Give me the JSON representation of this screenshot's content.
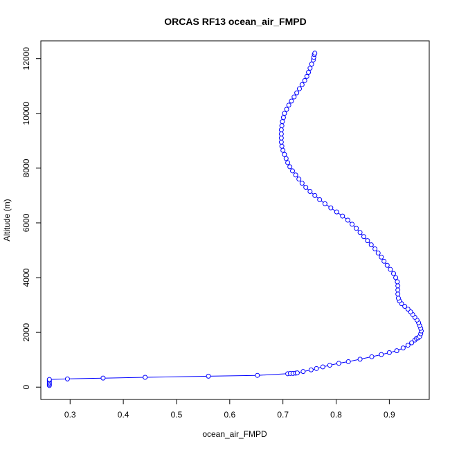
{
  "chart_data": {
    "type": "scatter",
    "title": "ORCAS RF13 ocean_air_FMPD",
    "xlabel": "ocean_air_FMPD",
    "ylabel": "Altitude (m)",
    "xlim": [
      0.245,
      0.975
    ],
    "ylim": [
      -450,
      12650
    ],
    "xticks": [
      0.3,
      0.4,
      0.5,
      0.6,
      0.7,
      0.8,
      0.9
    ],
    "yticks": [
      0,
      2000,
      4000,
      6000,
      8000,
      10000,
      12000
    ],
    "x_tick_labels": [
      "0.3",
      "0.4",
      "0.5",
      "0.6",
      "0.7",
      "0.8",
      "0.9"
    ],
    "y_tick_labels": [
      "0",
      "2000",
      "4000",
      "6000",
      "8000",
      "10000",
      "12000"
    ],
    "grid": false,
    "series": [
      {
        "color": "#0000ff",
        "marker": "open-circle",
        "line": true,
        "points": [
          [
            0.261,
            60
          ],
          [
            0.261,
            100
          ],
          [
            0.261,
            150
          ],
          [
            0.261,
            200
          ],
          [
            0.261,
            250
          ],
          [
            0.261,
            280
          ],
          [
            0.295,
            300
          ],
          [
            0.362,
            330
          ],
          [
            0.441,
            360
          ],
          [
            0.56,
            400
          ],
          [
            0.652,
            430
          ],
          [
            0.709,
            490
          ],
          [
            0.714,
            500
          ],
          [
            0.719,
            500
          ],
          [
            0.724,
            510
          ],
          [
            0.727,
            520
          ],
          [
            0.738,
            570
          ],
          [
            0.753,
            630
          ],
          [
            0.763,
            680
          ],
          [
            0.775,
            740
          ],
          [
            0.788,
            800
          ],
          [
            0.805,
            870
          ],
          [
            0.823,
            930
          ],
          [
            0.845,
            1020
          ],
          [
            0.867,
            1110
          ],
          [
            0.885,
            1190
          ],
          [
            0.9,
            1260
          ],
          [
            0.914,
            1330
          ],
          [
            0.926,
            1430
          ],
          [
            0.935,
            1530
          ],
          [
            0.942,
            1620
          ],
          [
            0.948,
            1720
          ],
          [
            0.951,
            1780
          ],
          [
            0.954,
            1800
          ],
          [
            0.957,
            1850
          ],
          [
            0.959,
            1950
          ],
          [
            0.96,
            2050
          ],
          [
            0.959,
            2150
          ],
          [
            0.957,
            2250
          ],
          [
            0.955,
            2350
          ],
          [
            0.952,
            2450
          ],
          [
            0.948,
            2550
          ],
          [
            0.944,
            2650
          ],
          [
            0.94,
            2750
          ],
          [
            0.935,
            2850
          ],
          [
            0.929,
            2950
          ],
          [
            0.923,
            3050
          ],
          [
            0.919,
            3150
          ],
          [
            0.917,
            3250
          ],
          [
            0.916,
            3400
          ],
          [
            0.916,
            3550
          ],
          [
            0.916,
            3700
          ],
          [
            0.915,
            3850
          ],
          [
            0.912,
            4000
          ],
          [
            0.908,
            4150
          ],
          [
            0.902,
            4300
          ],
          [
            0.896,
            4450
          ],
          [
            0.89,
            4600
          ],
          [
            0.885,
            4750
          ],
          [
            0.879,
            4900
          ],
          [
            0.873,
            5050
          ],
          [
            0.866,
            5200
          ],
          [
            0.859,
            5350
          ],
          [
            0.852,
            5500
          ],
          [
            0.845,
            5650
          ],
          [
            0.838,
            5800
          ],
          [
            0.83,
            5950
          ],
          [
            0.822,
            6100
          ],
          [
            0.812,
            6250
          ],
          [
            0.801,
            6400
          ],
          [
            0.79,
            6550
          ],
          [
            0.779,
            6700
          ],
          [
            0.769,
            6850
          ],
          [
            0.76,
            7000
          ],
          [
            0.751,
            7150
          ],
          [
            0.743,
            7300
          ],
          [
            0.736,
            7450
          ],
          [
            0.73,
            7600
          ],
          [
            0.724,
            7750
          ],
          [
            0.718,
            7900
          ],
          [
            0.713,
            8050
          ],
          [
            0.709,
            8200
          ],
          [
            0.706,
            8350
          ],
          [
            0.703,
            8500
          ],
          [
            0.7,
            8650
          ],
          [
            0.698,
            8800
          ],
          [
            0.697,
            8950
          ],
          [
            0.697,
            9100
          ],
          [
            0.697,
            9250
          ],
          [
            0.697,
            9400
          ],
          [
            0.698,
            9550
          ],
          [
            0.699,
            9700
          ],
          [
            0.701,
            9850
          ],
          [
            0.703,
            10000
          ],
          [
            0.707,
            10150
          ],
          [
            0.711,
            10300
          ],
          [
            0.716,
            10450
          ],
          [
            0.721,
            10600
          ],
          [
            0.726,
            10750
          ],
          [
            0.731,
            10900
          ],
          [
            0.736,
            11050
          ],
          [
            0.741,
            11200
          ],
          [
            0.745,
            11350
          ],
          [
            0.748,
            11500
          ],
          [
            0.751,
            11650
          ],
          [
            0.754,
            11800
          ],
          [
            0.757,
            11950
          ],
          [
            0.758,
            12050
          ],
          [
            0.759,
            12150
          ],
          [
            0.76,
            12200
          ]
        ]
      }
    ]
  }
}
